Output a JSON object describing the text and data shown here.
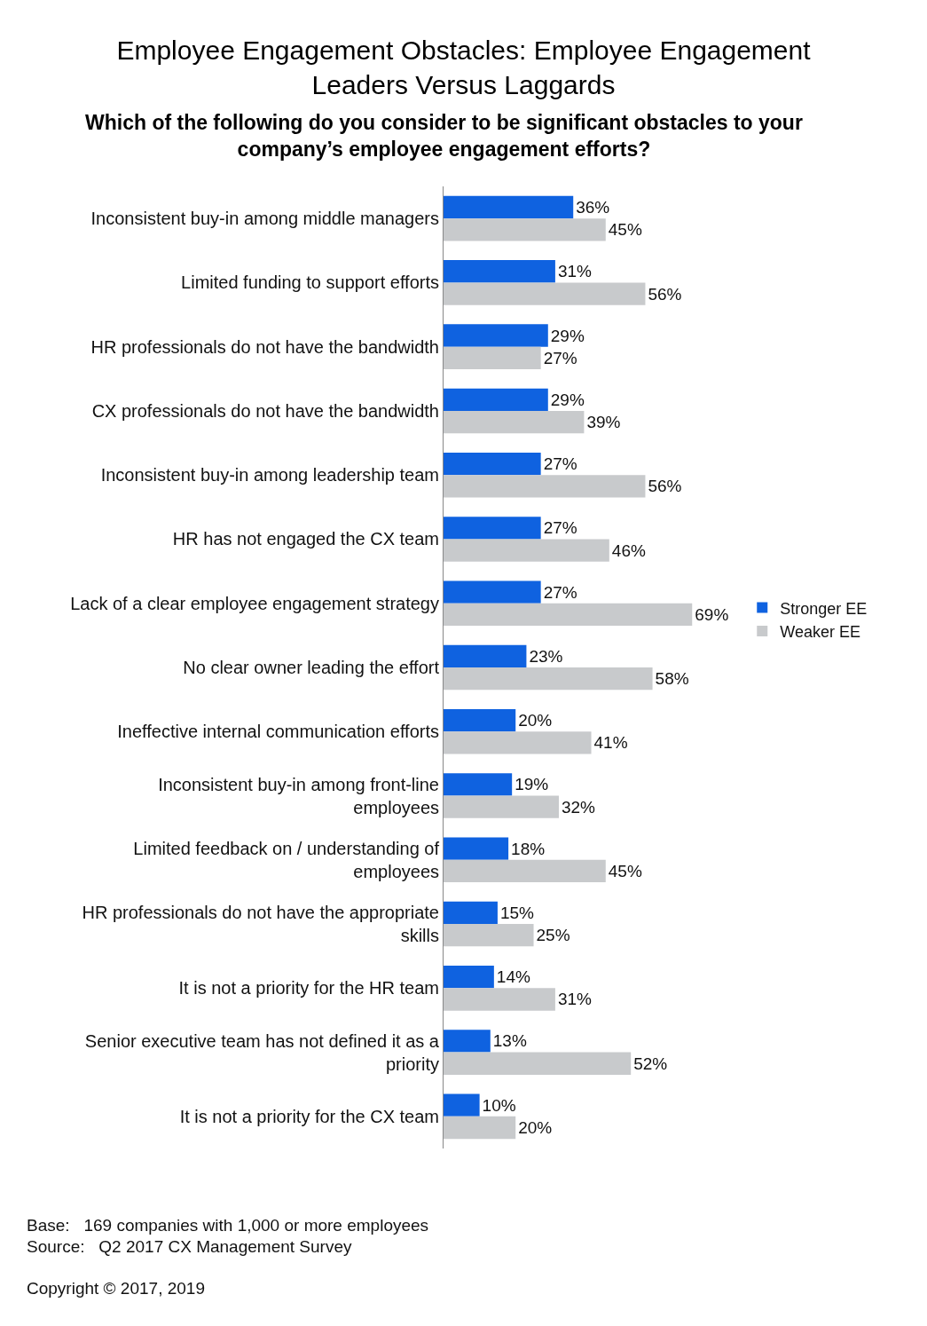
{
  "chart_data": {
    "type": "bar",
    "orientation": "horizontal",
    "title": "Employee Engagement Obstacles: Employee Engagement Leaders Versus Laggards",
    "subtitle": "Which of the following do you consider to be significant obstacles to your company’s employee engagement efforts?",
    "categories": [
      "Inconsistent buy-in among middle managers",
      "Limited funding to support efforts",
      "HR professionals do not have the bandwidth",
      "CX professionals do not have the bandwidth",
      "Inconsistent buy-in among leadership team",
      "HR has not engaged the CX team",
      "Lack of a clear employee engagement strategy",
      "No clear owner leading the effort",
      "Ineffective internal communication efforts",
      "Inconsistent buy-in among front-line employees",
      "Limited feedback on / understanding of employees",
      "HR professionals do not have the appropriate skills",
      "It is not a priority for the HR team",
      "Senior executive team has not defined it as a priority",
      "It is not a priority for the CX team"
    ],
    "series": [
      {
        "name": "Stronger EE",
        "color": "#0f62e0",
        "values": [
          36,
          31,
          29,
          29,
          27,
          27,
          27,
          23,
          20,
          19,
          18,
          15,
          14,
          13,
          10
        ],
        "value_labels": [
          "36%",
          "31%",
          "29%",
          "29%",
          "27%",
          "27%",
          "27%",
          "23%",
          "20%",
          "19%",
          "18%",
          "15%",
          "14%",
          "13%",
          "10%"
        ]
      },
      {
        "name": "Weaker EE",
        "color": "#c8cacc",
        "values": [
          45,
          56,
          27,
          39,
          56,
          46,
          69,
          58,
          41,
          32,
          45,
          25,
          31,
          52,
          20
        ],
        "value_labels": [
          "45%",
          "56%",
          "27%",
          "39%",
          "56%",
          "46%",
          "69%",
          "58%",
          "41%",
          "32%",
          "45%",
          "25%",
          "31%",
          "52%",
          "20%"
        ]
      }
    ],
    "legend": "right",
    "grid": false,
    "annotations": [
      "Base:   169 companies with 1,000 or more employees",
      "Source:   Q2 2017 CX Management Survey",
      "Copyright © 2017, 2019"
    ]
  }
}
